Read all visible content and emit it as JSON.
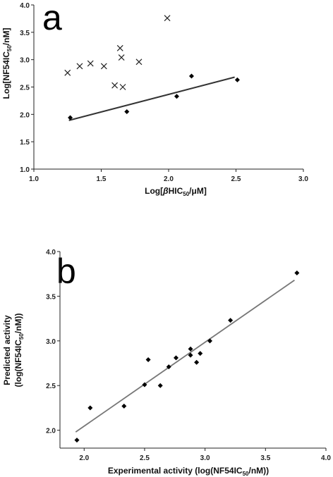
{
  "chart_data": [
    {
      "type": "scatter",
      "panel_label": "a",
      "xlabel": "Log[βHIC50/μM]",
      "ylabel": "Log[NF54IC50/nM]",
      "xlim": [
        1.0,
        3.0
      ],
      "ylim": [
        1.0,
        4.0
      ],
      "xticks": [
        "1.0",
        "1.5",
        "2.0",
        "2.5",
        "3.0"
      ],
      "yticks": [
        "1.0",
        "1.5",
        "2.0",
        "2.5",
        "3.0",
        "3.5",
        "4.0"
      ],
      "grid": false,
      "series": [
        {
          "marker": "cross",
          "x": [
            1.25,
            1.34,
            1.42,
            1.52,
            1.6,
            1.64,
            1.65,
            1.66,
            1.78,
            1.99
          ],
          "y": [
            2.76,
            2.88,
            2.93,
            2.88,
            2.53,
            3.21,
            3.04,
            2.5,
            2.96,
            3.76
          ]
        },
        {
          "marker": "diamond",
          "x": [
            1.27,
            1.69,
            2.06,
            2.17,
            2.51
          ],
          "y": [
            1.94,
            2.05,
            2.33,
            2.7,
            2.63
          ]
        }
      ],
      "trendline": {
        "x": [
          1.26,
          2.49
        ],
        "y": [
          1.89,
          2.68
        ]
      }
    },
    {
      "type": "scatter",
      "panel_label": "b",
      "xlabel": "Experimental activity (log(NF54IC50/nM))",
      "ylabel": "Predicted activity (log(NF54IC50/nM))",
      "xlim": [
        1.8,
        4.0
      ],
      "ylim": [
        1.8,
        4.0
      ],
      "xticks": [
        "2.0",
        "2.5",
        "3.0",
        "3.5",
        "4.0"
      ],
      "yticks": [
        "2.0",
        "2.5",
        "3.0",
        "3.5",
        "4.0"
      ],
      "grid": false,
      "series": [
        {
          "marker": "diamond",
          "x": [
            1.94,
            2.05,
            2.33,
            2.5,
            2.53,
            2.63,
            2.7,
            2.76,
            2.88,
            2.88,
            2.93,
            2.96,
            3.04,
            3.21,
            3.76
          ],
          "y": [
            1.89,
            2.25,
            2.27,
            2.51,
            2.79,
            2.5,
            2.71,
            2.81,
            2.91,
            2.84,
            2.76,
            2.86,
            3.0,
            3.23,
            3.76
          ]
        }
      ],
      "trendline": {
        "x": [
          1.93,
          3.74
        ],
        "y": [
          1.98,
          3.68
        ]
      }
    }
  ]
}
